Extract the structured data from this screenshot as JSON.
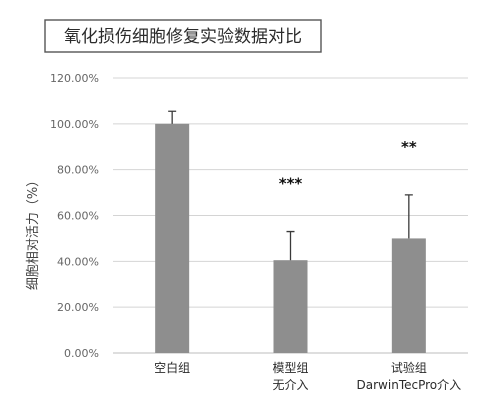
{
  "chart_data": {
    "type": "bar",
    "title": "氧化损伤细胞修复实验数据对比",
    "ylabel": "细胞相对活力（%）",
    "xlabel": "",
    "ylim": [
      0,
      120
    ],
    "yticks": [
      "0.00%",
      "20.00%",
      "40.00%",
      "60.00%",
      "80.00%",
      "100.00%",
      "120.00%"
    ],
    "grid": true,
    "bar_color": "#8e8e8e",
    "categories": [
      {
        "lines": [
          "空白组"
        ]
      },
      {
        "lines": [
          "模型组",
          "无介入"
        ]
      },
      {
        "lines": [
          "试验组",
          "DarwinTecPro介入"
        ]
      }
    ],
    "values": [
      100,
      40.5,
      50
    ],
    "error_upper": [
      105.5,
      53,
      69
    ],
    "significance": [
      "",
      "***",
      "**"
    ]
  }
}
